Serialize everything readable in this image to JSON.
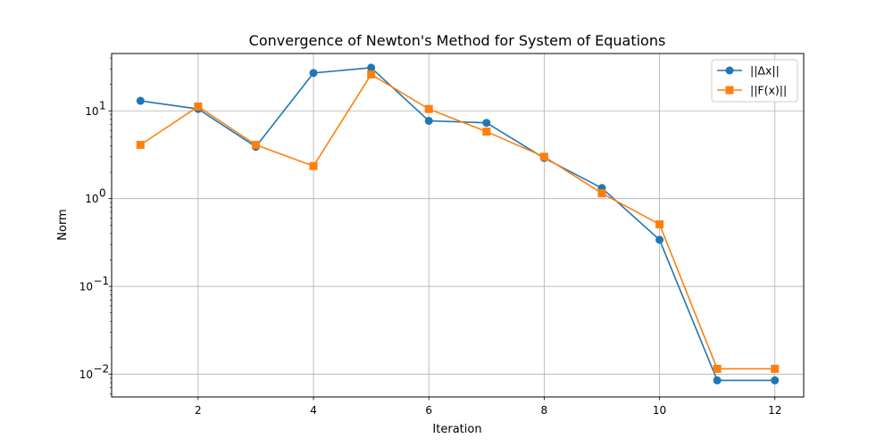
{
  "chart_data": {
    "type": "line",
    "title": "Convergence of Newton's Method for System of Equations",
    "xlabel": "Iteration",
    "ylabel": "Norm",
    "yscale": "log",
    "xlim": [
      0.5,
      12.5
    ],
    "ylim": [
      0.0055,
      45
    ],
    "x_ticks": [
      2,
      4,
      6,
      8,
      10,
      12
    ],
    "y_ticks": [
      {
        "value": 0.01,
        "base": "10",
        "exp": "−2"
      },
      {
        "value": 0.1,
        "base": "10",
        "exp": "−1"
      },
      {
        "value": 1,
        "base": "10",
        "exp": "0"
      },
      {
        "value": 10,
        "base": "10",
        "exp": "1"
      }
    ],
    "grid": true,
    "legend_position": "top-right",
    "x": [
      1,
      2,
      3,
      4,
      5,
      6,
      7,
      8,
      9,
      10,
      11,
      12
    ],
    "series": [
      {
        "name": "||Δx||",
        "color": "#1f77b4",
        "marker": "circle",
        "values": [
          13,
          10.5,
          3.9,
          27,
          31,
          7.7,
          7.3,
          2.9,
          1.32,
          0.34,
          0.0085,
          0.0085
        ]
      },
      {
        "name": "||F(x)||",
        "color": "#ff7f0e",
        "marker": "square",
        "values": [
          4.1,
          11.2,
          4.1,
          2.35,
          26,
          10.5,
          5.8,
          3.0,
          1.15,
          0.51,
          0.0115,
          0.0115
        ]
      }
    ]
  }
}
